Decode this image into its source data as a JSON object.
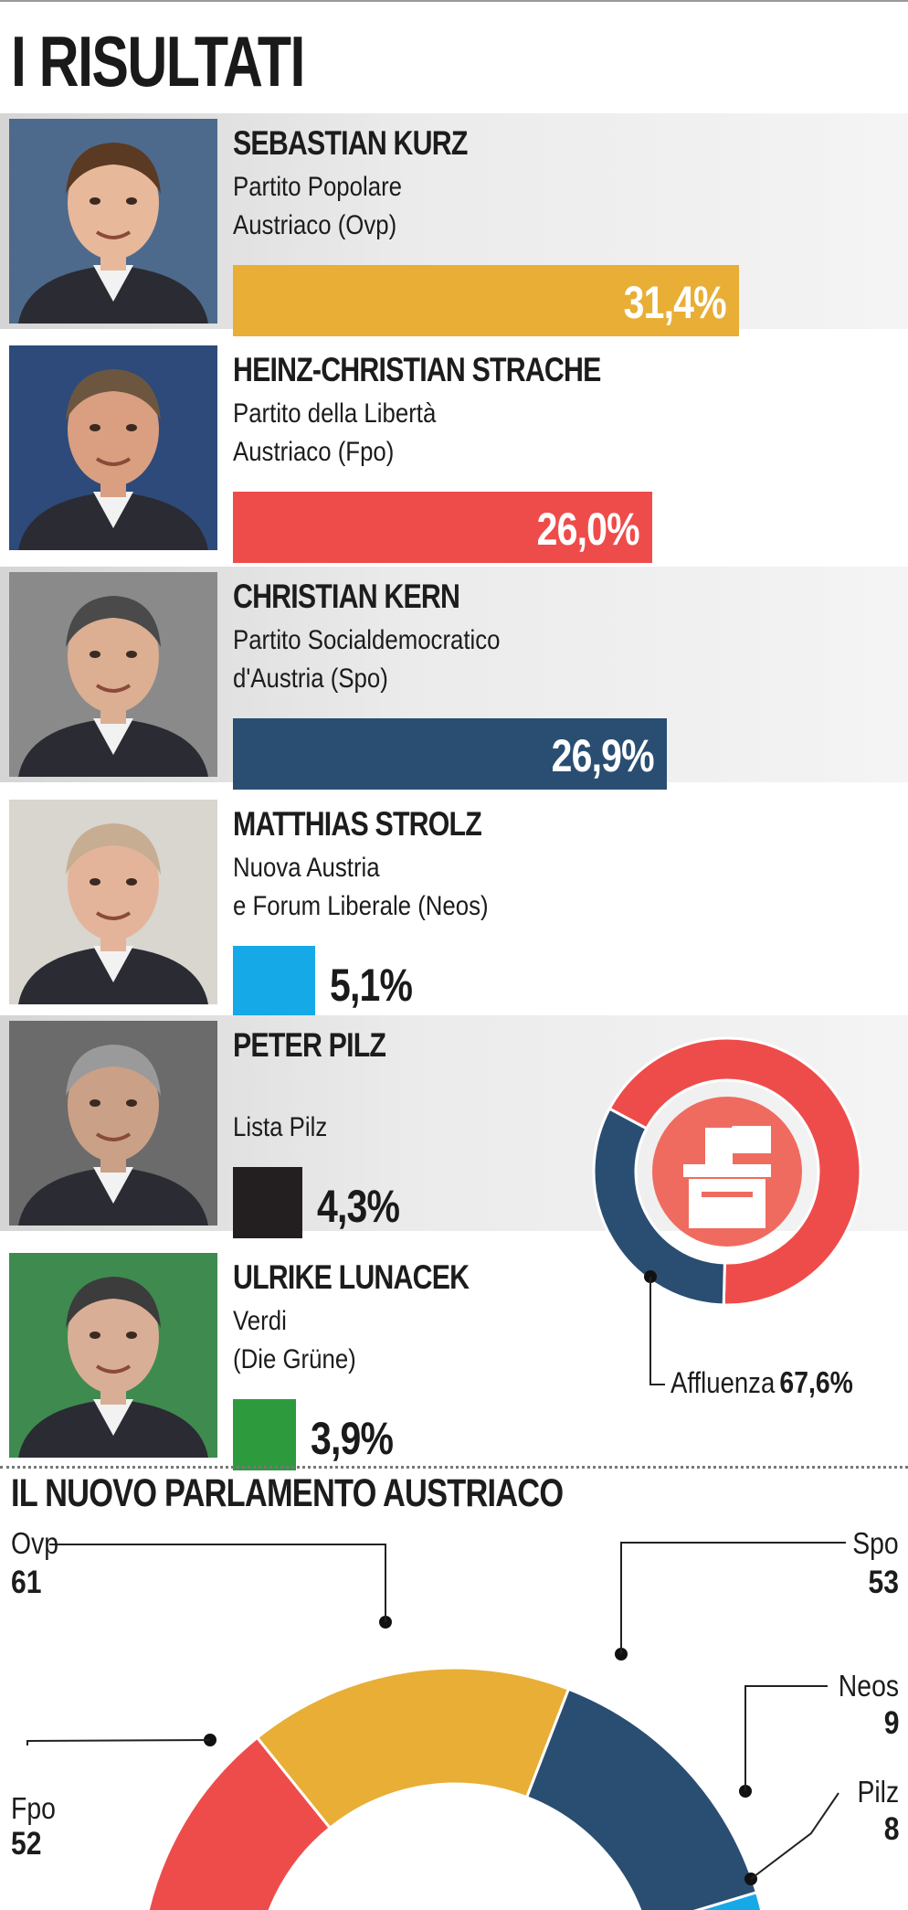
{
  "title": "I RISULTATI",
  "candidates": [
    {
      "name": "SEBASTIAN KURZ",
      "party": "Partito Popolare\nAustriaco (Ovp)",
      "value_label": "31,4%",
      "value": 31.4,
      "color": "#e8ae36"
    },
    {
      "name": "HEINZ-CHRISTIAN STRACHE",
      "party": "Partito della Libertà\nAustriaco (Fpo)",
      "value_label": "26,0%",
      "value": 26.0,
      "color": "#ee4c4a"
    },
    {
      "name": "CHRISTIAN KERN",
      "party": "Partito Socialdemocratico\nd'Austria (Spo)",
      "value_label": "26,9%",
      "value": 26.9,
      "color": "#2a4e72"
    },
    {
      "name": "MATTHIAS STROLZ",
      "party": "Nuova Austria\ne Forum Liberale (Neos)",
      "value_label": "5,1%",
      "value": 5.1,
      "color": "#16a9e8"
    },
    {
      "name": "PETER PILZ",
      "party": "\nLista Pilz",
      "value_label": "4,3%",
      "value": 4.3,
      "color": "#231f20"
    },
    {
      "name": "ULRIKE LUNACEK",
      "party": "Verdi\n(Die Grüne)",
      "value_label": "3,9%",
      "value": 3.9,
      "color": "#2e9a3e"
    }
  ],
  "turnout": {
    "label": "Affluenza",
    "value_label": "67,6%",
    "value": 67.6,
    "color_voted": "#ee4c4a",
    "color_rest": "#2a4e72",
    "icon": "ballot-box-icon"
  },
  "parliament": {
    "title": "IL NUOVO PARLAMENTO AUSTRIACO",
    "seats": [
      {
        "party": "Fpo",
        "seats": "52",
        "color": "#ee4c4a"
      },
      {
        "party": "Ovp",
        "seats": "61",
        "color": "#e8ae36"
      },
      {
        "party": "Spo",
        "seats": "53",
        "color": "#2a4e72"
      },
      {
        "party": "Neos",
        "seats": "9",
        "color": "#16a9e8"
      },
      {
        "party": "Pilz",
        "seats": "8",
        "color": "#231f20"
      }
    ]
  },
  "chart_data": [
    {
      "type": "bar",
      "categories": [
        "SEBASTIAN KURZ",
        "HEINZ-CHRISTIAN STRACHE",
        "CHRISTIAN KERN",
        "MATTHIAS STROLZ",
        "PETER PILZ",
        "ULRIKE LUNACEK"
      ],
      "values": [
        31.4,
        26.0,
        26.9,
        5.1,
        4.3,
        3.9
      ]
    },
    {
      "type": "pie",
      "categories": [
        "Affluenza",
        ""
      ],
      "values": [
        67.6,
        32.4
      ]
    },
    {
      "type": "pie",
      "title": "IL NUOVO PARLAMENTO AUSTRIACO",
      "categories": [
        "Fpo",
        "Ovp",
        "Spo",
        "Neos",
        "Pilz"
      ],
      "values": [
        52,
        61,
        53,
        9,
        8
      ]
    }
  ]
}
